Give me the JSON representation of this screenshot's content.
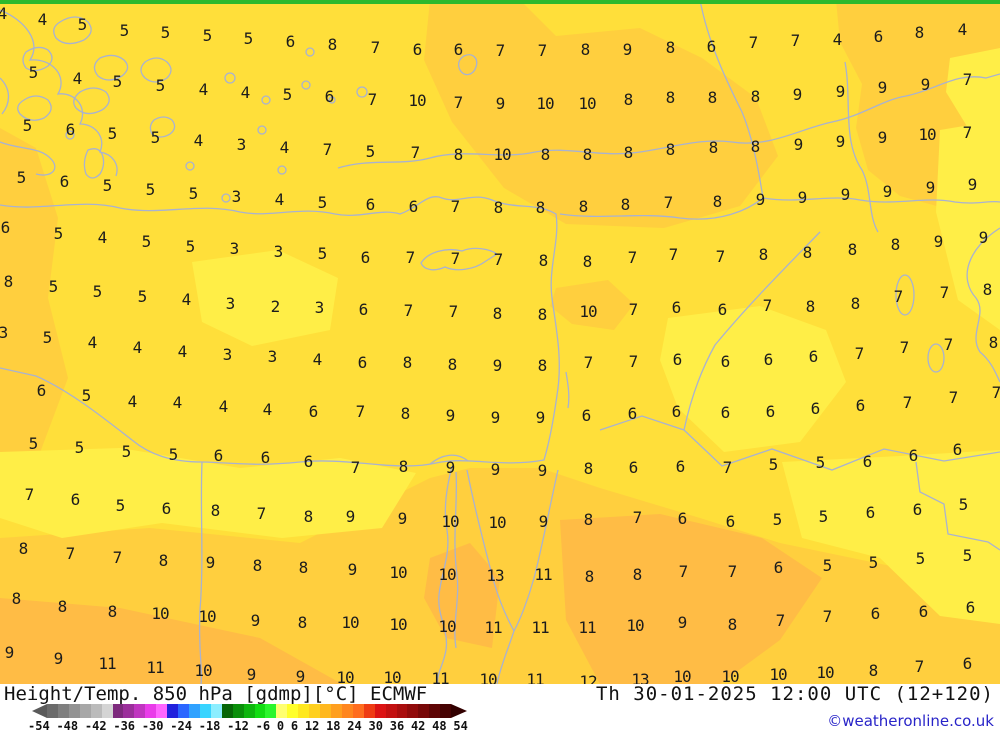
{
  "map": {
    "colors": {
      "base": "#ffdf3a",
      "bright": "#ffee47",
      "amber": "#ffcf3e",
      "orange": "#ffbc45",
      "top_strip": "#2db92d",
      "coastline": "#a9b2d0",
      "value_text": "#1c1c1c"
    },
    "temperature_points": [
      [
        2,
        14,
        4
      ],
      [
        42,
        20,
        4
      ],
      [
        82,
        25,
        5
      ],
      [
        124,
        31,
        5
      ],
      [
        165,
        33,
        5
      ],
      [
        207,
        36,
        5
      ],
      [
        248,
        39,
        5
      ],
      [
        290,
        42,
        6
      ],
      [
        332,
        45,
        8
      ],
      [
        375,
        48,
        7
      ],
      [
        417,
        50,
        6
      ],
      [
        458,
        50,
        6
      ],
      [
        500,
        51,
        7
      ],
      [
        542,
        51,
        7
      ],
      [
        585,
        50,
        8
      ],
      [
        627,
        50,
        9
      ],
      [
        670,
        48,
        8
      ],
      [
        711,
        47,
        6
      ],
      [
        753,
        43,
        7
      ],
      [
        795,
        41,
        7
      ],
      [
        837,
        40,
        4
      ],
      [
        878,
        37,
        6
      ],
      [
        919,
        33,
        8
      ],
      [
        962,
        30,
        4
      ],
      [
        33,
        73,
        5
      ],
      [
        77,
        79,
        4
      ],
      [
        117,
        82,
        5
      ],
      [
        160,
        86,
        5
      ],
      [
        203,
        90,
        4
      ],
      [
        245,
        93,
        4
      ],
      [
        287,
        95,
        5
      ],
      [
        329,
        97,
        6
      ],
      [
        372,
        100,
        7
      ],
      [
        417,
        101,
        10
      ],
      [
        458,
        103,
        7
      ],
      [
        500,
        104,
        9
      ],
      [
        545,
        104,
        10
      ],
      [
        587,
        104,
        10
      ],
      [
        628,
        100,
        8
      ],
      [
        670,
        98,
        8
      ],
      [
        712,
        98,
        8
      ],
      [
        755,
        97,
        8
      ],
      [
        797,
        95,
        9
      ],
      [
        840,
        92,
        9
      ],
      [
        882,
        88,
        9
      ],
      [
        925,
        85,
        9
      ],
      [
        967,
        80,
        7
      ],
      [
        27,
        126,
        5
      ],
      [
        70,
        130,
        6
      ],
      [
        112,
        134,
        5
      ],
      [
        155,
        138,
        5
      ],
      [
        198,
        141,
        4
      ],
      [
        241,
        145,
        3
      ],
      [
        284,
        148,
        4
      ],
      [
        327,
        150,
        7
      ],
      [
        370,
        152,
        5
      ],
      [
        415,
        153,
        7
      ],
      [
        458,
        155,
        8
      ],
      [
        502,
        155,
        10
      ],
      [
        545,
        155,
        8
      ],
      [
        587,
        155,
        8
      ],
      [
        628,
        153,
        8
      ],
      [
        670,
        150,
        8
      ],
      [
        713,
        148,
        8
      ],
      [
        755,
        147,
        8
      ],
      [
        798,
        145,
        9
      ],
      [
        840,
        142,
        9
      ],
      [
        882,
        138,
        9
      ],
      [
        927,
        135,
        10
      ],
      [
        967,
        133,
        7
      ],
      [
        21,
        178,
        5
      ],
      [
        64,
        182,
        6
      ],
      [
        107,
        186,
        5
      ],
      [
        150,
        190,
        5
      ],
      [
        193,
        194,
        5
      ],
      [
        236,
        197,
        3
      ],
      [
        279,
        200,
        4
      ],
      [
        322,
        203,
        5
      ],
      [
        370,
        205,
        6
      ],
      [
        413,
        207,
        6
      ],
      [
        455,
        207,
        7
      ],
      [
        498,
        208,
        8
      ],
      [
        540,
        208,
        8
      ],
      [
        583,
        207,
        8
      ],
      [
        625,
        205,
        8
      ],
      [
        668,
        203,
        7
      ],
      [
        717,
        202,
        8
      ],
      [
        760,
        200,
        9
      ],
      [
        802,
        198,
        9
      ],
      [
        845,
        195,
        9
      ],
      [
        887,
        192,
        9
      ],
      [
        930,
        188,
        9
      ],
      [
        972,
        185,
        9
      ],
      [
        5,
        228,
        6
      ],
      [
        58,
        234,
        5
      ],
      [
        102,
        238,
        4
      ],
      [
        146,
        242,
        5
      ],
      [
        190,
        247,
        5
      ],
      [
        234,
        249,
        3
      ],
      [
        278,
        252,
        3
      ],
      [
        322,
        254,
        5
      ],
      [
        365,
        258,
        6
      ],
      [
        410,
        258,
        7
      ],
      [
        455,
        259,
        7
      ],
      [
        498,
        260,
        7
      ],
      [
        543,
        261,
        8
      ],
      [
        587,
        262,
        8
      ],
      [
        632,
        258,
        7
      ],
      [
        673,
        255,
        7
      ],
      [
        720,
        257,
        7
      ],
      [
        763,
        255,
        8
      ],
      [
        807,
        253,
        8
      ],
      [
        852,
        250,
        8
      ],
      [
        895,
        245,
        8
      ],
      [
        938,
        242,
        9
      ],
      [
        983,
        238,
        9
      ],
      [
        8,
        282,
        8
      ],
      [
        53,
        287,
        5
      ],
      [
        97,
        292,
        5
      ],
      [
        142,
        297,
        5
      ],
      [
        186,
        300,
        4
      ],
      [
        230,
        304,
        3
      ],
      [
        275,
        307,
        2
      ],
      [
        319,
        308,
        3
      ],
      [
        363,
        310,
        6
      ],
      [
        408,
        311,
        7
      ],
      [
        453,
        312,
        7
      ],
      [
        497,
        314,
        8
      ],
      [
        542,
        315,
        8
      ],
      [
        588,
        312,
        10
      ],
      [
        633,
        310,
        7
      ],
      [
        676,
        308,
        6
      ],
      [
        722,
        310,
        6
      ],
      [
        767,
        306,
        7
      ],
      [
        810,
        307,
        8
      ],
      [
        855,
        304,
        8
      ],
      [
        898,
        297,
        7
      ],
      [
        944,
        293,
        7
      ],
      [
        987,
        290,
        8
      ],
      [
        3,
        333,
        3
      ],
      [
        47,
        338,
        5
      ],
      [
        92,
        343,
        4
      ],
      [
        137,
        348,
        4
      ],
      [
        182,
        352,
        4
      ],
      [
        227,
        355,
        3
      ],
      [
        272,
        357,
        3
      ],
      [
        317,
        360,
        4
      ],
      [
        362,
        363,
        6
      ],
      [
        407,
        363,
        8
      ],
      [
        452,
        365,
        8
      ],
      [
        497,
        366,
        9
      ],
      [
        542,
        366,
        8
      ],
      [
        588,
        363,
        7
      ],
      [
        633,
        362,
        7
      ],
      [
        677,
        360,
        6
      ],
      [
        725,
        362,
        6
      ],
      [
        768,
        360,
        6
      ],
      [
        813,
        357,
        6
      ],
      [
        859,
        354,
        7
      ],
      [
        904,
        348,
        7
      ],
      [
        948,
        345,
        7
      ],
      [
        993,
        343,
        8
      ],
      [
        41,
        391,
        6
      ],
      [
        86,
        396,
        5
      ],
      [
        132,
        402,
        4
      ],
      [
        177,
        403,
        4
      ],
      [
        223,
        407,
        4
      ],
      [
        267,
        410,
        4
      ],
      [
        313,
        412,
        6
      ],
      [
        360,
        412,
        7
      ],
      [
        405,
        414,
        8
      ],
      [
        450,
        416,
        9
      ],
      [
        495,
        418,
        9
      ],
      [
        540,
        418,
        9
      ],
      [
        586,
        416,
        6
      ],
      [
        632,
        414,
        6
      ],
      [
        676,
        412,
        6
      ],
      [
        725,
        413,
        6
      ],
      [
        770,
        412,
        6
      ],
      [
        815,
        409,
        6
      ],
      [
        860,
        406,
        6
      ],
      [
        907,
        403,
        7
      ],
      [
        953,
        398,
        7
      ],
      [
        996,
        393,
        7
      ],
      [
        33,
        444,
        5
      ],
      [
        79,
        448,
        5
      ],
      [
        126,
        452,
        5
      ],
      [
        173,
        455,
        5
      ],
      [
        218,
        456,
        6
      ],
      [
        265,
        458,
        6
      ],
      [
        308,
        462,
        6
      ],
      [
        355,
        468,
        7
      ],
      [
        403,
        467,
        8
      ],
      [
        450,
        468,
        9
      ],
      [
        495,
        470,
        9
      ],
      [
        542,
        471,
        9
      ],
      [
        588,
        469,
        8
      ],
      [
        633,
        468,
        6
      ],
      [
        680,
        467,
        6
      ],
      [
        727,
        468,
        7
      ],
      [
        773,
        465,
        5
      ],
      [
        820,
        463,
        5
      ],
      [
        867,
        462,
        6
      ],
      [
        913,
        456,
        6
      ],
      [
        957,
        450,
        6
      ],
      [
        29,
        495,
        7
      ],
      [
        75,
        500,
        6
      ],
      [
        120,
        506,
        5
      ],
      [
        166,
        509,
        6
      ],
      [
        215,
        511,
        8
      ],
      [
        261,
        514,
        7
      ],
      [
        308,
        517,
        8
      ],
      [
        350,
        517,
        9
      ],
      [
        402,
        519,
        9
      ],
      [
        450,
        522,
        10
      ],
      [
        497,
        523,
        10
      ],
      [
        543,
        522,
        9
      ],
      [
        588,
        520,
        8
      ],
      [
        637,
        518,
        7
      ],
      [
        682,
        519,
        6
      ],
      [
        730,
        522,
        6
      ],
      [
        777,
        520,
        5
      ],
      [
        823,
        517,
        5
      ],
      [
        870,
        513,
        6
      ],
      [
        917,
        510,
        6
      ],
      [
        963,
        505,
        5
      ],
      [
        23,
        549,
        8
      ],
      [
        70,
        554,
        7
      ],
      [
        117,
        558,
        7
      ],
      [
        163,
        561,
        8
      ],
      [
        210,
        563,
        9
      ],
      [
        257,
        566,
        8
      ],
      [
        303,
        568,
        8
      ],
      [
        352,
        570,
        9
      ],
      [
        398,
        573,
        10
      ],
      [
        447,
        575,
        10
      ],
      [
        495,
        576,
        13
      ],
      [
        543,
        575,
        11
      ],
      [
        589,
        577,
        8
      ],
      [
        637,
        575,
        8
      ],
      [
        683,
        572,
        7
      ],
      [
        732,
        572,
        7
      ],
      [
        778,
        568,
        6
      ],
      [
        827,
        566,
        5
      ],
      [
        873,
        563,
        5
      ],
      [
        920,
        559,
        5
      ],
      [
        967,
        556,
        5
      ],
      [
        16,
        599,
        8
      ],
      [
        62,
        607,
        8
      ],
      [
        112,
        612,
        8
      ],
      [
        160,
        614,
        10
      ],
      [
        207,
        617,
        10
      ],
      [
        255,
        621,
        9
      ],
      [
        302,
        623,
        8
      ],
      [
        350,
        623,
        10
      ],
      [
        398,
        625,
        10
      ],
      [
        447,
        627,
        10
      ],
      [
        493,
        628,
        11
      ],
      [
        540,
        628,
        11
      ],
      [
        587,
        628,
        11
      ],
      [
        635,
        626,
        10
      ],
      [
        682,
        623,
        9
      ],
      [
        732,
        625,
        8
      ],
      [
        780,
        621,
        7
      ],
      [
        827,
        617,
        7
      ],
      [
        875,
        614,
        6
      ],
      [
        923,
        612,
        6
      ],
      [
        970,
        608,
        6
      ],
      [
        9,
        653,
        9
      ],
      [
        58,
        659,
        9
      ],
      [
        107,
        664,
        11
      ],
      [
        155,
        668,
        11
      ],
      [
        203,
        671,
        10
      ],
      [
        251,
        675,
        9
      ],
      [
        300,
        677,
        9
      ],
      [
        345,
        678,
        10
      ],
      [
        392,
        678,
        10
      ],
      [
        440,
        679,
        11
      ],
      [
        488,
        680,
        10
      ],
      [
        535,
        680,
        11
      ],
      [
        588,
        682,
        12
      ],
      [
        640,
        680,
        13
      ],
      [
        682,
        677,
        10
      ],
      [
        730,
        677,
        10
      ],
      [
        778,
        675,
        10
      ],
      [
        825,
        673,
        10
      ],
      [
        873,
        671,
        8
      ],
      [
        919,
        667,
        7
      ],
      [
        967,
        664,
        6
      ]
    ]
  },
  "footer": {
    "title": "Height/Temp. 850 hPa [gdmp][°C] ECMWF",
    "timestamp": "Th 30-01-2025 12:00 UTC (12+120)",
    "copyright": "©weatheronline.co.uk",
    "text_color": "#111111",
    "copyright_color": "#2824c8",
    "scale": {
      "labels": [
        "-54",
        "-48",
        "-42",
        "-36",
        "-30",
        "-24",
        "-18",
        "-12",
        "-6",
        "0",
        "6",
        "12",
        "18",
        "24",
        "30",
        "36",
        "42",
        "48",
        "54"
      ],
      "arrow_left_color": "#5a5a5a",
      "arrow_right_color": "#320000",
      "colors": [
        "#6b6b6b",
        "#7f7f7f",
        "#939393",
        "#a7a7a7",
        "#bbbbbb",
        "#d4d4d4",
        "#7d2a7d",
        "#9b2f9b",
        "#c035c0",
        "#e93ce9",
        "#ff66ff",
        "#2121dd",
        "#2b66ff",
        "#30a2ff",
        "#38d4ff",
        "#8ceeff",
        "#076607",
        "#0a8f0a",
        "#0eb60e",
        "#12dd12",
        "#2bf62b",
        "#ffff70",
        "#ffff2b",
        "#ffe81f",
        "#ffd01f",
        "#ffb81f",
        "#ff9f1f",
        "#ff861f",
        "#ff6d1f",
        "#ef3c14",
        "#dc1414",
        "#c31111",
        "#aa0e0e",
        "#910b0b",
        "#780808",
        "#5f0505",
        "#460303"
      ]
    }
  }
}
